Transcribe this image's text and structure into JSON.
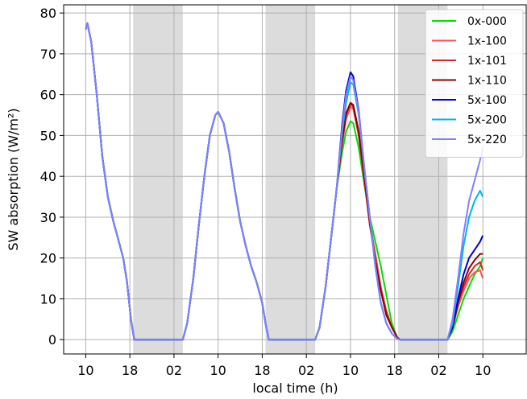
{
  "chart_data": {
    "type": "line",
    "title": "",
    "xlabel": "local time (h)",
    "ylabel": "SW absorption (W/m²)",
    "ylim": [
      -3.5,
      82
    ],
    "xlim": [
      -4,
      80
    ],
    "grid": true,
    "legend_position": "top-right",
    "x_unit_note": "hours since first 10:00 local time",
    "x_ticks": [
      0,
      8,
      16,
      24,
      32,
      40,
      48,
      56,
      64,
      72
    ],
    "x_tick_labels": [
      "10",
      "18",
      "02",
      "10",
      "18",
      "02",
      "10",
      "18",
      "02",
      "10"
    ],
    "y_ticks": [
      0,
      10,
      20,
      30,
      40,
      50,
      60,
      70,
      80
    ],
    "y_tick_labels": [
      "0",
      "10",
      "20",
      "30",
      "40",
      "50",
      "60",
      "70",
      "80"
    ],
    "night_bands": [
      [
        8.6,
        17.6
      ],
      [
        32.6,
        41.6
      ],
      [
        56.6,
        65.6
      ]
    ],
    "common_profile": [
      [
        0,
        76
      ],
      [
        0.3,
        77.5
      ],
      [
        1,
        73
      ],
      [
        2,
        60
      ],
      [
        3,
        45
      ],
      [
        4,
        35
      ],
      [
        5,
        29
      ],
      [
        6,
        24
      ],
      [
        6.8,
        20
      ],
      [
        7.5,
        14
      ],
      [
        8.2,
        5
      ],
      [
        8.8,
        0
      ],
      [
        17.6,
        0
      ],
      [
        18.4,
        4
      ],
      [
        19.5,
        15
      ],
      [
        20.5,
        28
      ],
      [
        21.5,
        40
      ],
      [
        22.5,
        50
      ],
      [
        23.5,
        55
      ],
      [
        24,
        55.8
      ],
      [
        25,
        53
      ],
      [
        26,
        46
      ],
      [
        27,
        37
      ],
      [
        28,
        29
      ],
      [
        29,
        23
      ],
      [
        30,
        18
      ],
      [
        31,
        14
      ],
      [
        32,
        9
      ],
      [
        32.6,
        4
      ],
      [
        33.2,
        0
      ],
      [
        41.6,
        0
      ],
      [
        42.4,
        3
      ],
      [
        43.5,
        13
      ],
      [
        44.5,
        25
      ],
      [
        45.5,
        37
      ]
    ],
    "series": [
      {
        "name": "0x-000",
        "color": "#00e000",
        "tail_a": [
          [
            46.5,
            46
          ],
          [
            47.2,
            51
          ],
          [
            48,
            53.5
          ],
          [
            48.5,
            53
          ],
          [
            49.5,
            47
          ],
          [
            50.5,
            38
          ],
          [
            51.5,
            30
          ],
          [
            52.5,
            24
          ],
          [
            53.5,
            18
          ],
          [
            54.5,
            11
          ],
          [
            55.5,
            4
          ],
          [
            56.5,
            0.3
          ],
          [
            57,
            0
          ]
        ],
        "tail_b": [
          [
            65.6,
            0
          ],
          [
            66.5,
            2
          ],
          [
            67.5,
            6
          ],
          [
            68.5,
            10
          ],
          [
            69.5,
            13
          ],
          [
            70.5,
            16
          ],
          [
            71.5,
            18
          ],
          [
            72,
            20
          ]
        ]
      },
      {
        "name": "1x-100",
        "color": "#ff5050",
        "tail_a": [
          [
            46.5,
            48
          ],
          [
            47.2,
            54
          ],
          [
            48,
            57
          ],
          [
            48.5,
            56.5
          ],
          [
            49.5,
            50
          ],
          [
            50.5,
            39
          ],
          [
            51.5,
            29
          ],
          [
            52.5,
            21
          ],
          [
            53.5,
            13
          ],
          [
            54.5,
            7
          ],
          [
            55.5,
            3
          ],
          [
            56.5,
            0.5
          ],
          [
            57,
            0
          ]
        ],
        "tail_b": [
          [
            65.6,
            0
          ],
          [
            66.5,
            3
          ],
          [
            67.5,
            8
          ],
          [
            68.5,
            12
          ],
          [
            69.5,
            15
          ],
          [
            70.5,
            16.5
          ],
          [
            71.5,
            17
          ],
          [
            72,
            15
          ]
        ]
      },
      {
        "name": "1x-101",
        "color": "#d02828",
        "tail_a": [
          [
            46.5,
            48.5
          ],
          [
            47.2,
            55
          ],
          [
            48,
            57.8
          ],
          [
            48.5,
            57
          ],
          [
            49.5,
            50
          ],
          [
            50.5,
            39
          ],
          [
            51.5,
            28
          ],
          [
            52.5,
            20
          ],
          [
            53.5,
            12
          ],
          [
            54.5,
            7
          ],
          [
            55.5,
            3
          ],
          [
            56.5,
            0.5
          ],
          [
            57,
            0
          ]
        ],
        "tail_b": [
          [
            65.6,
            0
          ],
          [
            66.5,
            3
          ],
          [
            67.5,
            9
          ],
          [
            68.5,
            13
          ],
          [
            69.5,
            16
          ],
          [
            70.5,
            18
          ],
          [
            71.5,
            19
          ],
          [
            72,
            17
          ]
        ]
      },
      {
        "name": "1x-110",
        "color": "#8b0000",
        "tail_a": [
          [
            46.5,
            49
          ],
          [
            47.2,
            55.5
          ],
          [
            48,
            58
          ],
          [
            48.5,
            57.5
          ],
          [
            49.5,
            51
          ],
          [
            50.5,
            40
          ],
          [
            51.5,
            29
          ],
          [
            52.5,
            19
          ],
          [
            53.5,
            12
          ],
          [
            54.5,
            6
          ],
          [
            55.5,
            3
          ],
          [
            56.5,
            0.5
          ],
          [
            57,
            0
          ]
        ],
        "tail_b": [
          [
            65.6,
            0
          ],
          [
            66.5,
            3
          ],
          [
            67.5,
            9
          ],
          [
            68.5,
            14
          ],
          [
            69.5,
            17.5
          ],
          [
            70.5,
            19.5
          ],
          [
            71.5,
            21
          ],
          [
            72,
            21
          ]
        ]
      },
      {
        "name": "5x-100",
        "color": "#0000cd",
        "tail_a": [
          [
            46.5,
            53
          ],
          [
            47.2,
            61
          ],
          [
            48,
            65.5
          ],
          [
            48.5,
            64.5
          ],
          [
            49.5,
            56
          ],
          [
            50.5,
            42
          ],
          [
            51.5,
            30
          ],
          [
            52.5,
            18
          ],
          [
            53.5,
            9
          ],
          [
            54.5,
            4
          ],
          [
            55.5,
            1.5
          ],
          [
            56.5,
            0.2
          ],
          [
            57,
            0
          ]
        ],
        "tail_b": [
          [
            65.6,
            0
          ],
          [
            66.5,
            3
          ],
          [
            67.5,
            10
          ],
          [
            68.5,
            16
          ],
          [
            69.5,
            20
          ],
          [
            70.5,
            22
          ],
          [
            71.5,
            24
          ],
          [
            72,
            25.5
          ]
        ]
      },
      {
        "name": "5x-200",
        "color": "#00b4f0",
        "tail_a": [
          [
            46.5,
            51
          ],
          [
            47.2,
            58
          ],
          [
            48,
            63
          ],
          [
            48.5,
            62.5
          ],
          [
            49.5,
            55
          ],
          [
            50.5,
            42
          ],
          [
            51.5,
            30
          ],
          [
            52.5,
            18
          ],
          [
            53.5,
            9
          ],
          [
            54.5,
            4
          ],
          [
            55.5,
            1.5
          ],
          [
            56.5,
            0.2
          ],
          [
            57,
            0
          ]
        ],
        "tail_b": [
          [
            65.6,
            0
          ],
          [
            66.5,
            4
          ],
          [
            67.5,
            13
          ],
          [
            68.5,
            23
          ],
          [
            69.5,
            30
          ],
          [
            70.5,
            34
          ],
          [
            71.5,
            36.5
          ],
          [
            72,
            35
          ]
        ]
      },
      {
        "name": "5x-220",
        "color": "#8080ff",
        "tail_a": [
          [
            46.5,
            52
          ],
          [
            47.2,
            60
          ],
          [
            48,
            64.5
          ],
          [
            48.5,
            63.5
          ],
          [
            49.5,
            55.5
          ],
          [
            50.5,
            42
          ],
          [
            51.5,
            30
          ],
          [
            52.5,
            18
          ],
          [
            53.5,
            9
          ],
          [
            54.5,
            4
          ],
          [
            55.5,
            1.5
          ],
          [
            56.5,
            0.2
          ],
          [
            57,
            0
          ]
        ],
        "tail_b": [
          [
            65.6,
            0
          ],
          [
            66.5,
            5
          ],
          [
            67.5,
            15
          ],
          [
            68.5,
            26
          ],
          [
            69.5,
            34
          ],
          [
            70.5,
            39
          ],
          [
            71.5,
            44
          ],
          [
            72,
            47
          ]
        ]
      }
    ]
  }
}
